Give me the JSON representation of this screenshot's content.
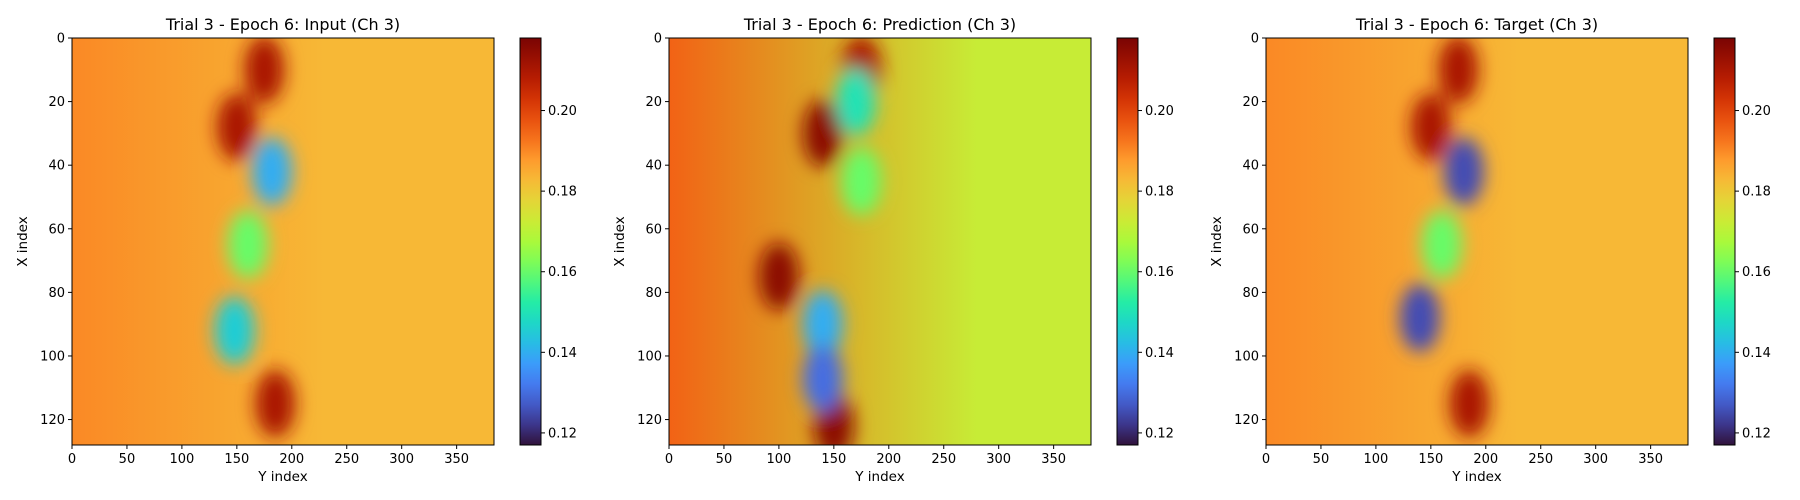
{
  "chart_data": [
    {
      "type": "heatmap",
      "title": "Trial 3 - Epoch 6: Input (Ch 3)",
      "xlabel": "Y index",
      "ylabel": "X index",
      "xlim": [
        0,
        384
      ],
      "ylim": [
        128,
        0
      ],
      "x_ticks": [
        "0",
        "50",
        "100",
        "150",
        "200",
        "250",
        "300",
        "350"
      ],
      "y_ticks": [
        "0",
        "20",
        "40",
        "60",
        "80",
        "100",
        "120"
      ],
      "colormap": "turbo",
      "color_range": [
        0.117,
        0.218
      ],
      "colorbar_ticks": [
        "0.12",
        "0.14",
        "0.16",
        "0.18",
        "0.20"
      ],
      "features": [
        {
          "x": 0,
          "y": 64,
          "value": 0.19,
          "kind": "background"
        },
        {
          "x": 230,
          "y": 64,
          "value": 0.183,
          "kind": "background"
        },
        {
          "x": 150,
          "y": 28,
          "value": 0.21,
          "kind": "high"
        },
        {
          "x": 175,
          "y": 10,
          "value": 0.21,
          "kind": "high"
        },
        {
          "x": 185,
          "y": 115,
          "value": 0.21,
          "kind": "high"
        },
        {
          "x": 182,
          "y": 42,
          "value": 0.14,
          "kind": "low"
        },
        {
          "x": 148,
          "y": 92,
          "value": 0.145,
          "kind": "low"
        },
        {
          "x": 160,
          "y": 65,
          "value": 0.16,
          "kind": "low"
        }
      ]
    },
    {
      "type": "heatmap",
      "title": "Trial 3 - Epoch 6: Prediction (Ch 3)",
      "xlabel": "Y index",
      "ylabel": "X index",
      "xlim": [
        0,
        384
      ],
      "ylim": [
        128,
        0
      ],
      "x_ticks": [
        "0",
        "50",
        "100",
        "150",
        "200",
        "250",
        "300",
        "350"
      ],
      "y_ticks": [
        "0",
        "20",
        "40",
        "60",
        "80",
        "100",
        "120"
      ],
      "colormap": "turbo",
      "color_range": [
        0.117,
        0.218
      ],
      "colorbar_ticks": [
        "0.12",
        "0.14",
        "0.16",
        "0.18",
        "0.20"
      ],
      "features": [
        {
          "x": 0,
          "y": 64,
          "value": 0.195,
          "kind": "background"
        },
        {
          "x": 280,
          "y": 64,
          "value": 0.172,
          "kind": "background"
        },
        {
          "x": 140,
          "y": 30,
          "value": 0.215,
          "kind": "high"
        },
        {
          "x": 100,
          "y": 75,
          "value": 0.215,
          "kind": "high"
        },
        {
          "x": 150,
          "y": 122,
          "value": 0.215,
          "kind": "high"
        },
        {
          "x": 175,
          "y": 10,
          "value": 0.21,
          "kind": "high"
        },
        {
          "x": 170,
          "y": 20,
          "value": 0.15,
          "kind": "low"
        },
        {
          "x": 140,
          "y": 90,
          "value": 0.14,
          "kind": "low"
        },
        {
          "x": 140,
          "y": 107,
          "value": 0.13,
          "kind": "low"
        },
        {
          "x": 175,
          "y": 45,
          "value": 0.16,
          "kind": "low"
        }
      ]
    },
    {
      "type": "heatmap",
      "title": "Trial 3 - Epoch 6: Target (Ch 3)",
      "xlabel": "Y index",
      "ylabel": "X index",
      "xlim": [
        0,
        384
      ],
      "ylim": [
        128,
        0
      ],
      "x_ticks": [
        "0",
        "50",
        "100",
        "150",
        "200",
        "250",
        "300",
        "350"
      ],
      "y_ticks": [
        "0",
        "20",
        "40",
        "60",
        "80",
        "100",
        "120"
      ],
      "colormap": "turbo",
      "color_range": [
        0.117,
        0.218
      ],
      "colorbar_ticks": [
        "0.12",
        "0.14",
        "0.16",
        "0.18",
        "0.20"
      ],
      "features": [
        {
          "x": 0,
          "y": 64,
          "value": 0.19,
          "kind": "background"
        },
        {
          "x": 230,
          "y": 64,
          "value": 0.183,
          "kind": "background"
        },
        {
          "x": 150,
          "y": 28,
          "value": 0.21,
          "kind": "high"
        },
        {
          "x": 175,
          "y": 10,
          "value": 0.21,
          "kind": "high"
        },
        {
          "x": 185,
          "y": 115,
          "value": 0.21,
          "kind": "high"
        },
        {
          "x": 180,
          "y": 42,
          "value": 0.125,
          "kind": "low"
        },
        {
          "x": 140,
          "y": 88,
          "value": 0.125,
          "kind": "low"
        },
        {
          "x": 160,
          "y": 65,
          "value": 0.16,
          "kind": "low"
        }
      ]
    }
  ]
}
